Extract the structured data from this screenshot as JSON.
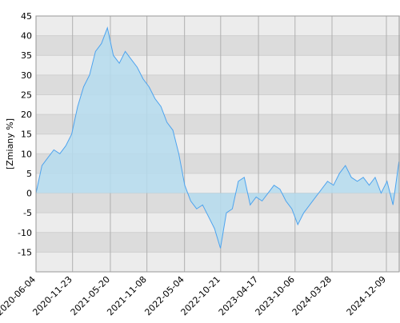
{
  "chart_data": {
    "type": "area",
    "y_label": "[Zmiany %]",
    "x": [
      "2020-06-04",
      "2020-07-02",
      "2020-07-30",
      "2020-08-27",
      "2020-09-24",
      "2020-10-22",
      "2020-11-19",
      "2020-12-17",
      "2021-01-14",
      "2021-02-11",
      "2021-03-11",
      "2021-04-08",
      "2021-05-06",
      "2021-06-03",
      "2021-07-01",
      "2021-07-29",
      "2021-08-26",
      "2021-09-23",
      "2021-10-21",
      "2021-11-18",
      "2021-12-16",
      "2022-01-13",
      "2022-02-10",
      "2022-03-10",
      "2022-04-07",
      "2022-05-05",
      "2022-06-02",
      "2022-06-30",
      "2022-07-28",
      "2022-08-25",
      "2022-09-22",
      "2022-10-20",
      "2022-11-17",
      "2022-12-15",
      "2023-01-12",
      "2023-02-09",
      "2023-03-09",
      "2023-04-06",
      "2023-05-04",
      "2023-06-01",
      "2023-06-29",
      "2023-07-27",
      "2023-08-24",
      "2023-09-21",
      "2023-10-19",
      "2023-11-16",
      "2023-12-14",
      "2024-01-11",
      "2024-02-08",
      "2024-03-07",
      "2024-04-04",
      "2024-05-02",
      "2024-05-30",
      "2024-06-27",
      "2024-07-25",
      "2024-08-22",
      "2024-09-19",
      "2024-10-17",
      "2024-11-14",
      "2024-12-12",
      "2025-01-09",
      "2025-02-06"
    ],
    "series": [
      {
        "color": "#4da3ee",
        "fill": "#b5dcee",
        "values": [
          0,
          7,
          9,
          11,
          10,
          12,
          15,
          22,
          27,
          30,
          36,
          38,
          42,
          35,
          33,
          36,
          34,
          32,
          29,
          27,
          24,
          22,
          18,
          16,
          10,
          2,
          -2,
          -4,
          -3,
          -6,
          -9,
          -14,
          -5,
          -4,
          3,
          4,
          -3,
          -1,
          -2,
          0,
          2,
          1,
          -2,
          -4,
          -8,
          -5,
          -3,
          -1,
          1,
          3,
          2,
          5,
          7,
          4,
          3,
          4,
          2,
          4,
          0,
          3,
          -3,
          8
        ]
      }
    ],
    "xlim": [
      "2020-06-04",
      "2025-02-11"
    ],
    "xticks": [
      "2020-06-04",
      "2020-11-23",
      "2021-05-20",
      "2021-11-08",
      "2022-05-04",
      "2022-10-21",
      "2023-04-17",
      "2023-10-06",
      "2024-03-28",
      "2024-12-09"
    ],
    "ylim": [
      -20,
      45
    ],
    "yticks": [
      -15,
      -10,
      -5,
      0,
      5,
      10,
      15,
      20,
      25,
      30,
      35,
      40,
      45
    ],
    "grid": true
  }
}
